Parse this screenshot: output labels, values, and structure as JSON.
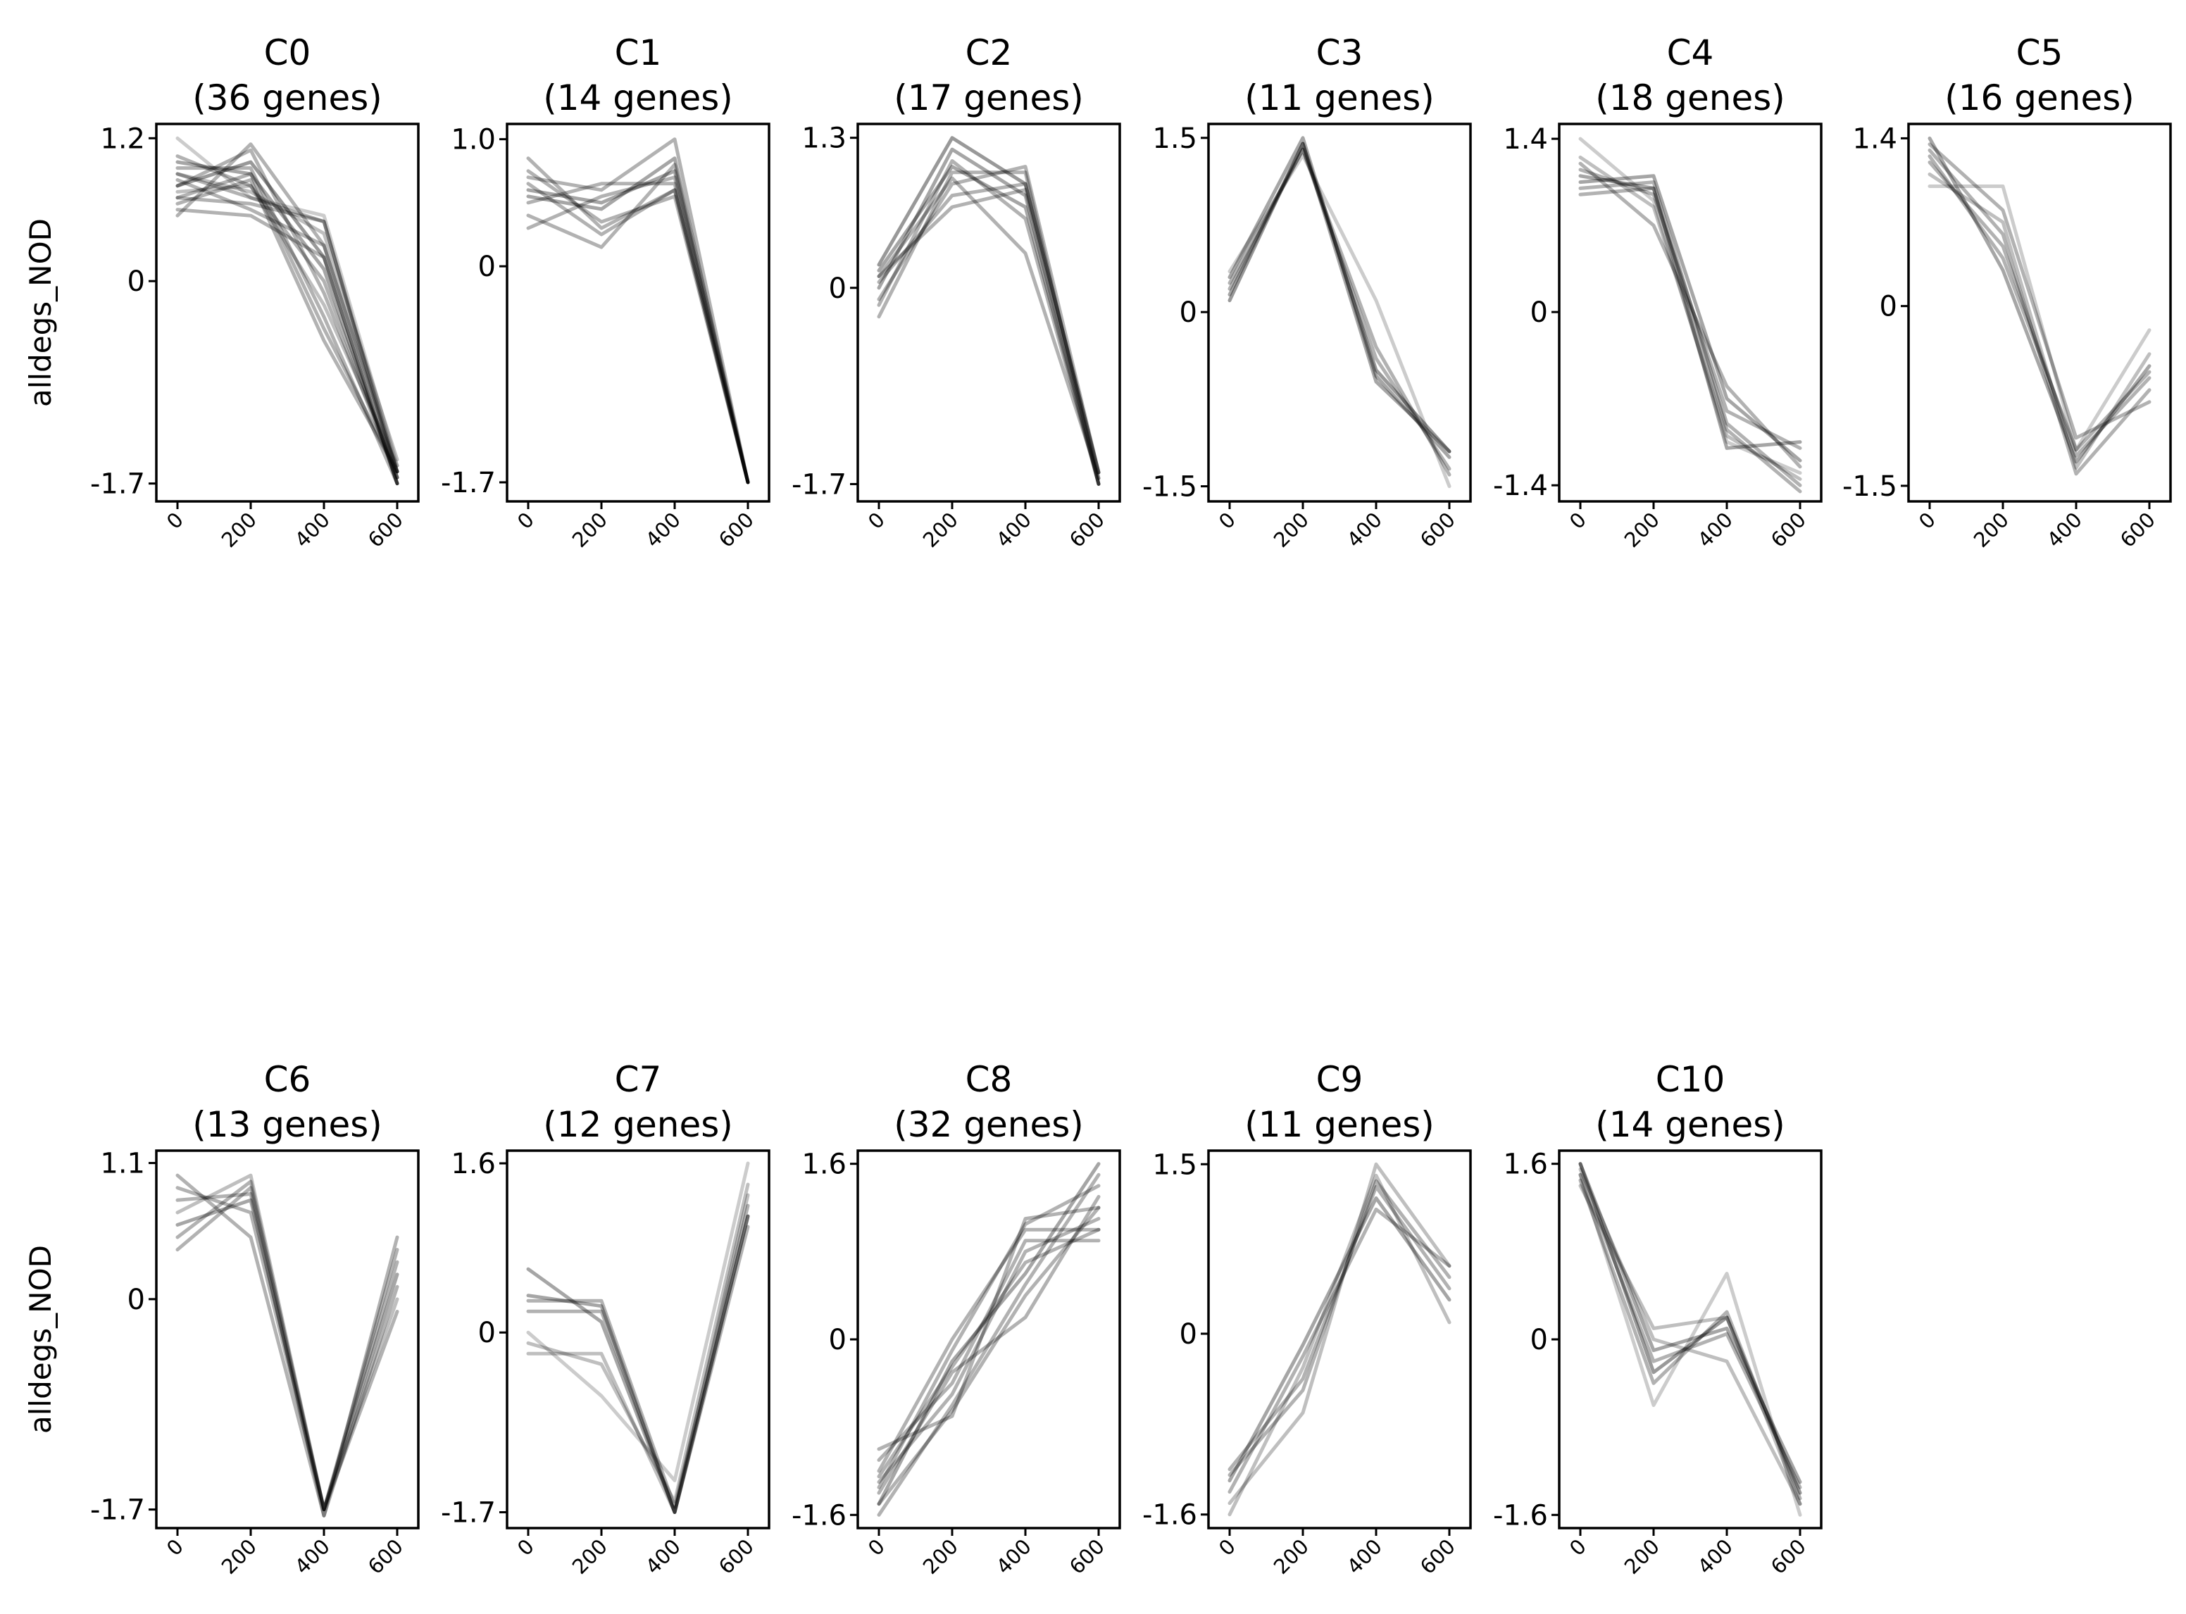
{
  "figure": {
    "ylabel": "alldegs_NOD"
  },
  "chart_data": [
    {
      "type": "line",
      "id": "C0",
      "title_line1": "C0",
      "title_line2": "(36 genes)",
      "ylabel": "alldegs_NOD",
      "x": [
        0,
        200,
        400,
        600
      ],
      "xticks": [
        "0",
        "200",
        "400",
        "600"
      ],
      "yticks": [
        1.2,
        0,
        -1.7
      ],
      "ytick_labels": [
        "1.2",
        "0",
        "-1.7"
      ],
      "ylim": [
        -1.85,
        1.32
      ],
      "series": [
        {
          "values": [
            1.2,
            0.7,
            0.55,
            -1.55
          ],
          "alpha": 0.2
        },
        {
          "values": [
            0.55,
            1.15,
            0.3,
            -1.6
          ],
          "alpha": 0.3
        },
        {
          "values": [
            0.8,
            1.0,
            0.2,
            -1.7
          ],
          "alpha": 0.4
        },
        {
          "values": [
            0.9,
            0.7,
            0.5,
            -1.65
          ],
          "alpha": 0.3
        },
        {
          "values": [
            0.7,
            0.65,
            0.5,
            -1.6
          ],
          "alpha": 0.3
        },
        {
          "values": [
            1.0,
            0.9,
            0.1,
            -1.7
          ],
          "alpha": 0.35
        },
        {
          "values": [
            0.85,
            0.6,
            0.3,
            -1.6
          ],
          "alpha": 0.3
        },
        {
          "values": [
            0.75,
            0.8,
            -0.2,
            -1.55
          ],
          "alpha": 0.25
        },
        {
          "values": [
            0.65,
            0.85,
            -0.5,
            -1.6
          ],
          "alpha": 0.3
        },
        {
          "values": [
            0.95,
            0.95,
            -0.3,
            -1.7
          ],
          "alpha": 0.3
        },
        {
          "values": [
            1.05,
            0.8,
            0.0,
            -1.65
          ],
          "alpha": 0.3
        },
        {
          "values": [
            0.6,
            0.55,
            0.2,
            -1.7
          ],
          "alpha": 0.3
        },
        {
          "values": [
            0.8,
            1.1,
            -0.1,
            -1.65
          ],
          "alpha": 0.3
        },
        {
          "values": [
            0.9,
            0.75,
            0.4,
            -1.5
          ],
          "alpha": 0.25
        },
        {
          "values": [
            0.7,
            0.9,
            -0.4,
            -1.6
          ],
          "alpha": 0.3
        }
      ]
    },
    {
      "type": "line",
      "id": "C1",
      "title_line1": "C1",
      "title_line2": "(14 genes)",
      "ylabel": "",
      "x": [
        0,
        200,
        400,
        600
      ],
      "xticks": [
        "0",
        "200",
        "400",
        "600"
      ],
      "yticks": [
        1.0,
        0,
        -1.7
      ],
      "ytick_labels": [
        "1.0",
        "0",
        "-1.7"
      ],
      "ylim": [
        -1.85,
        1.12
      ],
      "series": [
        {
          "values": [
            0.85,
            0.3,
            0.6,
            -1.7
          ],
          "alpha": 0.3
        },
        {
          "values": [
            0.7,
            0.6,
            1.0,
            -1.7
          ],
          "alpha": 0.3
        },
        {
          "values": [
            0.4,
            0.15,
            0.8,
            -1.7
          ],
          "alpha": 0.3
        },
        {
          "values": [
            0.6,
            0.5,
            0.75,
            -1.7
          ],
          "alpha": 0.35
        },
        {
          "values": [
            0.75,
            0.35,
            0.55,
            -1.7
          ],
          "alpha": 0.3
        },
        {
          "values": [
            0.5,
            0.65,
            0.65,
            -1.7
          ],
          "alpha": 0.3
        },
        {
          "values": [
            0.3,
            0.55,
            0.7,
            -1.7
          ],
          "alpha": 0.3
        },
        {
          "values": [
            0.65,
            0.25,
            0.6,
            -1.7
          ],
          "alpha": 0.3
        },
        {
          "values": [
            0.55,
            0.45,
            0.85,
            -1.7
          ],
          "alpha": 0.35
        }
      ]
    },
    {
      "type": "line",
      "id": "C2",
      "title_line1": "C2",
      "title_line2": "(17 genes)",
      "ylabel": "",
      "x": [
        0,
        200,
        400,
        600
      ],
      "xticks": [
        "0",
        "200",
        "400",
        "600"
      ],
      "yticks": [
        1.3,
        0,
        -1.7
      ],
      "ytick_labels": [
        "1.3",
        "0",
        "-1.7"
      ],
      "ylim": [
        -1.85,
        1.42
      ],
      "series": [
        {
          "values": [
            0.2,
            1.3,
            0.9,
            -1.6
          ],
          "alpha": 0.4
        },
        {
          "values": [
            -0.25,
            1.0,
            1.0,
            -1.7
          ],
          "alpha": 0.3
        },
        {
          "values": [
            0.1,
            0.7,
            0.85,
            -1.65
          ],
          "alpha": 0.3
        },
        {
          "values": [
            0.0,
            1.2,
            0.8,
            -1.7
          ],
          "alpha": 0.35
        },
        {
          "values": [
            -0.1,
            0.9,
            1.05,
            -1.6
          ],
          "alpha": 0.3
        },
        {
          "values": [
            0.15,
            1.05,
            0.7,
            -1.7
          ],
          "alpha": 0.35
        },
        {
          "values": [
            0.05,
            0.8,
            0.9,
            -1.6
          ],
          "alpha": 0.3
        },
        {
          "values": [
            -0.15,
            1.1,
            0.6,
            -1.7
          ],
          "alpha": 0.3
        },
        {
          "values": [
            0.1,
            0.95,
            0.3,
            -1.65
          ],
          "alpha": 0.3
        }
      ]
    },
    {
      "type": "line",
      "id": "C3",
      "title_line1": "C3",
      "title_line2": "(11 genes)",
      "ylabel": "",
      "x": [
        0,
        200,
        400,
        600
      ],
      "xticks": [
        "0",
        "200",
        "400",
        "600"
      ],
      "yticks": [
        1.5,
        0,
        -1.5
      ],
      "ytick_labels": [
        "1.5",
        "0",
        "-1.5"
      ],
      "ylim": [
        -1.63,
        1.62
      ],
      "series": [
        {
          "values": [
            0.1,
            1.45,
            -0.5,
            -1.2
          ],
          "alpha": 0.4
        },
        {
          "values": [
            0.3,
            1.5,
            -0.55,
            -1.25
          ],
          "alpha": 0.35
        },
        {
          "values": [
            0.2,
            1.4,
            -0.3,
            -1.4
          ],
          "alpha": 0.3
        },
        {
          "values": [
            0.35,
            1.35,
            0.1,
            -1.5
          ],
          "alpha": 0.2
        },
        {
          "values": [
            0.15,
            1.45,
            -0.6,
            -1.2
          ],
          "alpha": 0.35
        },
        {
          "values": [
            0.25,
            1.4,
            -0.4,
            -1.35
          ],
          "alpha": 0.3
        }
      ]
    },
    {
      "type": "line",
      "id": "C4",
      "title_line1": "C4",
      "title_line2": "(18 genes)",
      "ylabel": "",
      "x": [
        0,
        200,
        400,
        600
      ],
      "xticks": [
        "0",
        "200",
        "400",
        "600"
      ],
      "yticks": [
        1.4,
        0,
        -1.4
      ],
      "ytick_labels": [
        "1.4",
        "0",
        "-1.4"
      ],
      "ylim": [
        -1.53,
        1.52
      ],
      "series": [
        {
          "values": [
            1.4,
            0.9,
            -1.05,
            -1.3
          ],
          "alpha": 0.2
        },
        {
          "values": [
            1.1,
            1.0,
            -1.1,
            -1.05
          ],
          "alpha": 0.35
        },
        {
          "values": [
            1.0,
            1.05,
            -0.9,
            -1.4
          ],
          "alpha": 0.3
        },
        {
          "values": [
            1.2,
            0.7,
            -0.6,
            -1.25
          ],
          "alpha": 0.3
        },
        {
          "values": [
            1.05,
            1.1,
            -0.7,
            -1.2
          ],
          "alpha": 0.35
        },
        {
          "values": [
            1.25,
            0.85,
            -1.0,
            -1.35
          ],
          "alpha": 0.25
        },
        {
          "values": [
            1.15,
            0.95,
            -0.8,
            -1.1
          ],
          "alpha": 0.3
        },
        {
          "values": [
            0.95,
            1.0,
            -0.95,
            -1.45
          ],
          "alpha": 0.3
        }
      ]
    },
    {
      "type": "line",
      "id": "C5",
      "title_line1": "C5",
      "title_line2": "(16 genes)",
      "ylabel": "",
      "x": [
        0,
        200,
        400,
        600
      ],
      "xticks": [
        "0",
        "200",
        "400",
        "600"
      ],
      "yticks": [
        1.4,
        0,
        -1.5
      ],
      "ytick_labels": [
        "1.4",
        "0",
        "-1.5"
      ],
      "ylim": [
        -1.63,
        1.52
      ],
      "series": [
        {
          "values": [
            1.0,
            1.0,
            -1.2,
            -0.2
          ],
          "alpha": 0.2
        },
        {
          "values": [
            1.4,
            0.3,
            -1.3,
            -0.5
          ],
          "alpha": 0.35
        },
        {
          "values": [
            1.3,
            0.6,
            -1.4,
            -0.7
          ],
          "alpha": 0.3
        },
        {
          "values": [
            1.2,
            0.5,
            -1.25,
            -0.6
          ],
          "alpha": 0.3
        },
        {
          "values": [
            1.35,
            0.8,
            -1.1,
            -0.8
          ],
          "alpha": 0.3
        },
        {
          "values": [
            1.1,
            0.7,
            -1.35,
            -0.4
          ],
          "alpha": 0.25
        },
        {
          "values": [
            1.25,
            0.4,
            -1.2,
            -0.55
          ],
          "alpha": 0.3
        }
      ]
    },
    {
      "type": "line",
      "id": "C6",
      "title_line1": "C6",
      "title_line2": "(13 genes)",
      "ylabel": "alldegs_NOD",
      "x": [
        0,
        200,
        400,
        600
      ],
      "xticks": [
        "0",
        "200",
        "400",
        "600"
      ],
      "yticks": [
        1.1,
        0,
        -1.7
      ],
      "ytick_labels": [
        "1.1",
        "0",
        "-1.7"
      ],
      "ylim": [
        -1.85,
        1.2
      ],
      "series": [
        {
          "values": [
            1.0,
            0.5,
            -1.75,
            0.5
          ],
          "alpha": 0.3
        },
        {
          "values": [
            0.4,
            0.9,
            -1.7,
            0.3
          ],
          "alpha": 0.3
        },
        {
          "values": [
            0.7,
            1.0,
            -1.7,
            0.0
          ],
          "alpha": 0.25
        },
        {
          "values": [
            0.9,
            0.7,
            -1.7,
            -0.1
          ],
          "alpha": 0.3
        },
        {
          "values": [
            0.6,
            0.8,
            -1.7,
            0.2
          ],
          "alpha": 0.35
        },
        {
          "values": [
            0.8,
            0.85,
            -1.75,
            0.1
          ],
          "alpha": 0.3
        },
        {
          "values": [
            0.5,
            0.95,
            -1.7,
            0.4
          ],
          "alpha": 0.3
        }
      ]
    },
    {
      "type": "line",
      "id": "C7",
      "title_line1": "C7",
      "title_line2": "(12 genes)",
      "ylabel": "",
      "x": [
        0,
        200,
        400,
        600
      ],
      "xticks": [
        "0",
        "200",
        "400",
        "600"
      ],
      "yticks": [
        1.6,
        0,
        -1.7
      ],
      "ytick_labels": [
        "1.6",
        "0",
        "-1.7"
      ],
      "ylim": [
        -1.85,
        1.72
      ],
      "series": [
        {
          "values": [
            0.6,
            0.1,
            -1.7,
            1.1
          ],
          "alpha": 0.35
        },
        {
          "values": [
            0.3,
            0.3,
            -1.65,
            1.2
          ],
          "alpha": 0.3
        },
        {
          "values": [
            0.0,
            -0.6,
            -1.4,
            1.6
          ],
          "alpha": 0.2
        },
        {
          "values": [
            -0.2,
            -0.2,
            -1.7,
            1.3
          ],
          "alpha": 0.25
        },
        {
          "values": [
            0.2,
            0.2,
            -1.7,
            1.0
          ],
          "alpha": 0.3
        },
        {
          "values": [
            -0.1,
            -0.3,
            -1.6,
            1.4
          ],
          "alpha": 0.25
        },
        {
          "values": [
            0.35,
            0.25,
            -1.7,
            1.1
          ],
          "alpha": 0.35
        }
      ]
    },
    {
      "type": "line",
      "id": "C8",
      "title_line1": "C8",
      "title_line2": "(32 genes)",
      "ylabel": "",
      "x": [
        0,
        200,
        400,
        600
      ],
      "xticks": [
        "0",
        "200",
        "400",
        "600"
      ],
      "yticks": [
        1.6,
        0,
        -1.6
      ],
      "ytick_labels": [
        "1.6",
        "0",
        "-1.6"
      ],
      "ylim": [
        -1.72,
        1.72
      ],
      "series": [
        {
          "values": [
            -1.0,
            -0.7,
            1.1,
            1.2
          ],
          "alpha": 0.3
        },
        {
          "values": [
            -1.2,
            0.0,
            1.0,
            1.0
          ],
          "alpha": 0.3
        },
        {
          "values": [
            -1.5,
            -0.2,
            0.6,
            1.6
          ],
          "alpha": 0.35
        },
        {
          "values": [
            -1.3,
            -0.5,
            0.8,
            1.1
          ],
          "alpha": 0.3
        },
        {
          "values": [
            -1.4,
            -0.3,
            0.2,
            1.3
          ],
          "alpha": 0.3
        },
        {
          "values": [
            -1.6,
            -0.6,
            0.5,
            1.5
          ],
          "alpha": 0.3
        },
        {
          "values": [
            -1.1,
            -0.4,
            0.9,
            0.9
          ],
          "alpha": 0.3
        },
        {
          "values": [
            -1.35,
            -0.1,
            1.05,
            1.4
          ],
          "alpha": 0.3
        },
        {
          "values": [
            -1.5,
            -0.65,
            0.4,
            1.2
          ],
          "alpha": 0.3
        },
        {
          "values": [
            -1.25,
            -0.25,
            0.7,
            1.0
          ],
          "alpha": 0.3
        }
      ]
    },
    {
      "type": "line",
      "id": "C9",
      "title_line1": "C9",
      "title_line2": "(11 genes)",
      "ylabel": "",
      "x": [
        0,
        200,
        400,
        600
      ],
      "xticks": [
        "0",
        "200",
        "400",
        "600"
      ],
      "yticks": [
        1.5,
        0,
        -1.6
      ],
      "ytick_labels": [
        "1.5",
        "0",
        "-1.6"
      ],
      "ylim": [
        -1.72,
        1.62
      ],
      "series": [
        {
          "values": [
            -1.2,
            -0.4,
            1.3,
            0.4
          ],
          "alpha": 0.3
        },
        {
          "values": [
            -1.5,
            -0.7,
            1.5,
            0.6
          ],
          "alpha": 0.25
        },
        {
          "values": [
            -1.3,
            -0.1,
            1.2,
            0.3
          ],
          "alpha": 0.35
        },
        {
          "values": [
            -1.6,
            -0.3,
            1.4,
            0.1
          ],
          "alpha": 0.25
        },
        {
          "values": [
            -1.25,
            -0.5,
            1.35,
            0.5
          ],
          "alpha": 0.3
        },
        {
          "values": [
            -1.4,
            -0.2,
            1.1,
            0.6
          ],
          "alpha": 0.3
        }
      ]
    },
    {
      "type": "line",
      "id": "C10",
      "title_line1": "C10",
      "title_line2": "(14 genes)",
      "ylabel": "",
      "x": [
        0,
        200,
        400,
        600
      ],
      "xticks": [
        "0",
        "200",
        "400",
        "600"
      ],
      "yticks": [
        1.6,
        0,
        -1.6
      ],
      "ytick_labels": [
        "1.6",
        "0",
        "-1.6"
      ],
      "ylim": [
        -1.72,
        1.72
      ],
      "series": [
        {
          "values": [
            1.6,
            -0.3,
            0.2,
            -1.4
          ],
          "alpha": 0.4
        },
        {
          "values": [
            1.4,
            0.1,
            0.2,
            -1.5
          ],
          "alpha": 0.25
        },
        {
          "values": [
            1.5,
            -0.6,
            0.6,
            -1.6
          ],
          "alpha": 0.2
        },
        {
          "values": [
            1.6,
            -0.1,
            0.1,
            -1.3
          ],
          "alpha": 0.35
        },
        {
          "values": [
            1.45,
            -0.4,
            0.25,
            -1.45
          ],
          "alpha": 0.3
        },
        {
          "values": [
            1.55,
            0.0,
            -0.2,
            -1.5
          ],
          "alpha": 0.25
        },
        {
          "values": [
            1.5,
            -0.2,
            0.05,
            -1.35
          ],
          "alpha": 0.3
        }
      ]
    }
  ]
}
